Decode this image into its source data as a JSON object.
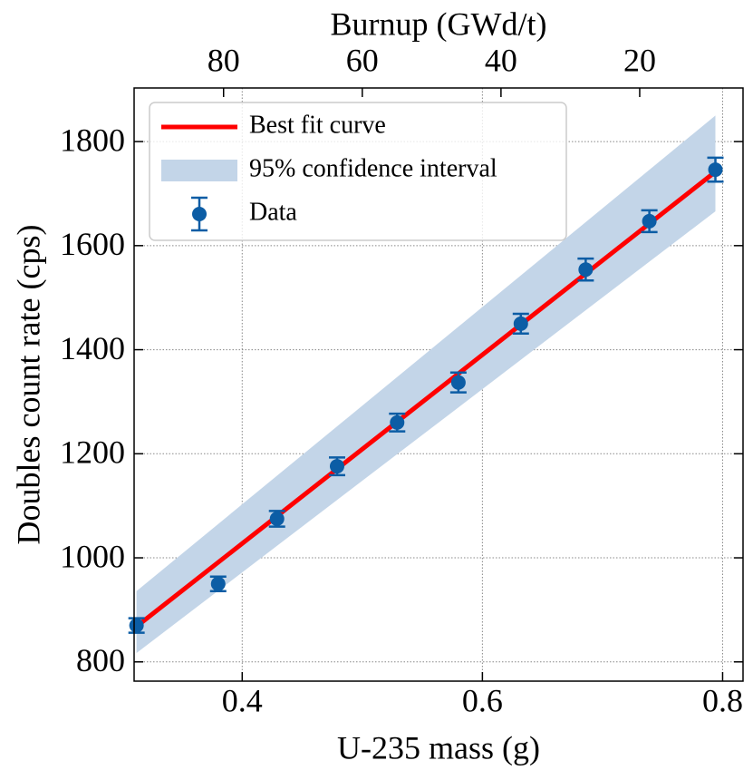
{
  "chart_data": {
    "type": "errorbar",
    "xlabel": "U-235 mass (g)",
    "ylabel": "Doubles count rate (cps)",
    "x2label": "Burnup (GWd/t)",
    "xlim": [
      0.31,
      0.817
    ],
    "ylim": [
      763,
      1903
    ],
    "x2lim": [
      92.9,
      5.1
    ],
    "xticks": [
      0.4,
      0.6,
      0.8
    ],
    "yticks": [
      800,
      1000,
      1200,
      1400,
      1600,
      1800
    ],
    "x2ticks": [
      80,
      60,
      40,
      20
    ],
    "grid": true,
    "legend": "upper left",
    "band": {
      "name": "95% confidence interval",
      "color": "#c3d5e8",
      "x": [
        0.312,
        0.794
      ],
      "lower": [
        817,
        1666
      ],
      "upper": [
        936,
        1850
      ]
    },
    "fit": {
      "name": "Best fit curve",
      "color": "#ff0000",
      "x": [
        0.312,
        0.794
      ],
      "values": [
        868,
        1742
      ]
    },
    "series": [
      {
        "name": "Data",
        "color": "#0c5da5",
        "x": [
          0.312,
          0.38,
          0.429,
          0.479,
          0.529,
          0.58,
          0.632,
          0.686,
          0.739,
          0.794
        ],
        "values": [
          870,
          950,
          1075,
          1176,
          1260,
          1337,
          1450,
          1554,
          1647,
          1746
        ],
        "errors": [
          14,
          14,
          15,
          17,
          17,
          19,
          19,
          21,
          21,
          23
        ]
      }
    ]
  }
}
